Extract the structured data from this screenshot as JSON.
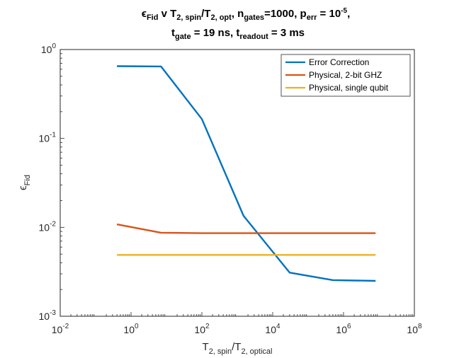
{
  "chart_data": {
    "type": "line",
    "title_line1": {
      "eps": "ϵ",
      "fid": "Fid",
      "v": " v T",
      "spin": "2, spin",
      "slash": "/T",
      "opt": "2, opt",
      "ngates_pre": ", n",
      "ngates_sub": "gates",
      "ngates_val": "=1000, p",
      "perr_sub": "err",
      "perr_val": " = 10",
      "perr_exp": "-5",
      "end": ","
    },
    "title_line2": {
      "t1": "t",
      "gate_sub": "gate",
      "gate_val": " = 19 ns, t",
      "readout_sub": "readout",
      "readout_val": " = 3 ms"
    },
    "xlabel": {
      "base": "T",
      "spin": "2, spin",
      "slash": "/T",
      "optical": "2, optical"
    },
    "ylabel": {
      "eps": "ϵ",
      "fid": "Fid"
    },
    "xscale": "log",
    "yscale": "log",
    "xlim": [
      0.01,
      100000000
    ],
    "ylim": [
      0.001,
      1
    ],
    "x_ticks": [
      {
        "value": 0.01,
        "base": "10",
        "exp": "-2"
      },
      {
        "value": 1,
        "base": "10",
        "exp": "0"
      },
      {
        "value": 100,
        "base": "10",
        "exp": "2"
      },
      {
        "value": 10000,
        "base": "10",
        "exp": "4"
      },
      {
        "value": 1000000,
        "base": "10",
        "exp": "6"
      },
      {
        "value": 100000000,
        "base": "10",
        "exp": "8"
      }
    ],
    "y_ticks": [
      {
        "value": 0.001,
        "base": "10",
        "exp": "-3"
      },
      {
        "value": 0.01,
        "base": "10",
        "exp": "-2"
      },
      {
        "value": 0.1,
        "base": "10",
        "exp": "-1"
      },
      {
        "value": 1,
        "base": "10",
        "exp": "0"
      }
    ],
    "grid": false,
    "legend_position": "top-right",
    "series": [
      {
        "name": "Error Correction",
        "color": "#0072bd",
        "x": [
          0.4,
          7,
          100,
          1500,
          30000,
          500000,
          8000000
        ],
        "y": [
          0.65,
          0.645,
          0.165,
          0.0135,
          0.0031,
          0.00255,
          0.0025
        ]
      },
      {
        "name": "Physical, 2-bit GHZ",
        "color": "#d95319",
        "x": [
          0.4,
          7,
          100,
          1500,
          30000,
          500000,
          8000000
        ],
        "y": [
          0.0108,
          0.0087,
          0.0086,
          0.0086,
          0.0086,
          0.0086,
          0.0086
        ]
      },
      {
        "name": "Physical, single qubit",
        "color": "#edb120",
        "x": [
          0.4,
          7,
          100,
          1500,
          30000,
          500000,
          8000000
        ],
        "y": [
          0.0049,
          0.0049,
          0.0049,
          0.0049,
          0.0049,
          0.0049,
          0.0049
        ]
      }
    ]
  }
}
